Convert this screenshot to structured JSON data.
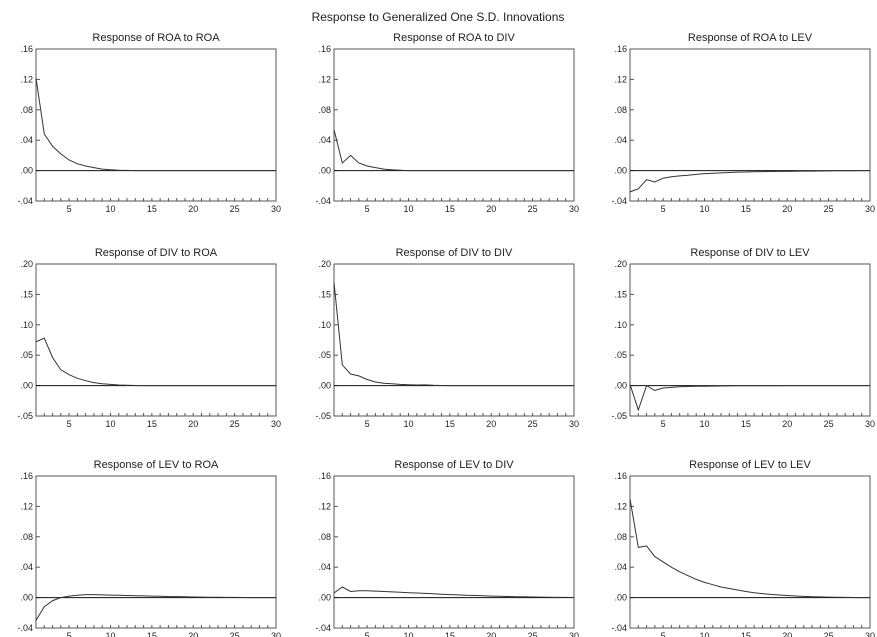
{
  "title": "Response to Generalized One S.D. Innovations",
  "chart_data": [
    {
      "type": "line",
      "title": "Response of ROA to ROA",
      "ylim": [
        -0.04,
        0.16
      ],
      "yticks": [
        -0.04,
        0.0,
        0.04,
        0.08,
        0.12,
        0.16
      ],
      "ytick_labels": [
        "-.04",
        ".00",
        ".04",
        ".08",
        ".12",
        ".16"
      ],
      "xlim": [
        1,
        30
      ],
      "xticks": [
        5,
        10,
        15,
        20,
        25,
        30
      ],
      "xtick_labels": [
        "5",
        "10",
        "15",
        "20",
        "25",
        "30"
      ],
      "zero_line": true,
      "x": [
        1,
        2,
        3,
        4,
        5,
        6,
        7,
        8,
        9,
        10,
        11,
        12,
        13,
        14,
        15,
        16,
        17,
        18,
        19,
        20,
        21,
        22,
        23,
        24,
        25,
        26,
        27,
        28,
        29,
        30
      ],
      "values": [
        0.122,
        0.048,
        0.032,
        0.022,
        0.014,
        0.009,
        0.006,
        0.004,
        0.002,
        0.001,
        0.0005,
        0.0002,
        0,
        0,
        0,
        0,
        0,
        0,
        0,
        0,
        0,
        0,
        0,
        0,
        0,
        0,
        0,
        0,
        0,
        0
      ]
    },
    {
      "type": "line",
      "title": "Response of ROA to DIV",
      "ylim": [
        -0.04,
        0.16
      ],
      "yticks": [
        -0.04,
        0.0,
        0.04,
        0.08,
        0.12,
        0.16
      ],
      "ytick_labels": [
        "-.04",
        ".00",
        ".04",
        ".08",
        ".12",
        ".16"
      ],
      "xlim": [
        1,
        30
      ],
      "xticks": [
        5,
        10,
        15,
        20,
        25,
        30
      ],
      "xtick_labels": [
        "5",
        "10",
        "15",
        "20",
        "25",
        "30"
      ],
      "zero_line": true,
      "x": [
        1,
        2,
        3,
        4,
        5,
        6,
        7,
        8,
        9,
        10,
        11,
        12,
        13,
        14,
        15,
        16,
        17,
        18,
        19,
        20,
        21,
        22,
        23,
        24,
        25,
        26,
        27,
        28,
        29,
        30
      ],
      "values": [
        0.054,
        0.01,
        0.02,
        0.01,
        0.006,
        0.004,
        0.002,
        0.001,
        0.0005,
        0,
        0,
        0,
        0,
        0,
        0,
        0,
        0,
        0,
        0,
        0,
        0,
        0,
        0,
        0,
        0,
        0,
        0,
        0,
        0,
        0
      ]
    },
    {
      "type": "line",
      "title": "Response of ROA to LEV",
      "ylim": [
        -0.04,
        0.16
      ],
      "yticks": [
        -0.04,
        0.0,
        0.04,
        0.08,
        0.12,
        0.16
      ],
      "ytick_labels": [
        "-.04",
        ".00",
        ".04",
        ".08",
        ".12",
        ".16"
      ],
      "xlim": [
        1,
        30
      ],
      "xticks": [
        5,
        10,
        15,
        20,
        25,
        30
      ],
      "xtick_labels": [
        "5",
        "10",
        "15",
        "20",
        "25",
        "30"
      ],
      "zero_line": true,
      "x": [
        1,
        2,
        3,
        4,
        5,
        6,
        7,
        8,
        9,
        10,
        11,
        12,
        13,
        14,
        15,
        16,
        17,
        18,
        19,
        20,
        21,
        22,
        23,
        24,
        25,
        26,
        27,
        28,
        29,
        30
      ],
      "values": [
        -0.028,
        -0.024,
        -0.012,
        -0.015,
        -0.01,
        -0.008,
        -0.007,
        -0.006,
        -0.005,
        -0.004,
        -0.0035,
        -0.003,
        -0.0025,
        -0.002,
        -0.0018,
        -0.0015,
        -0.0013,
        -0.0012,
        -0.001,
        -0.001,
        -0.0008,
        -0.0007,
        -0.0006,
        -0.0005,
        -0.0004,
        -0.0003,
        -0.0002,
        -0.0001,
        0,
        0
      ]
    },
    {
      "type": "line",
      "title": "Response of DIV to ROA",
      "ylim": [
        -0.05,
        0.2
      ],
      "yticks": [
        -0.05,
        0.0,
        0.05,
        0.1,
        0.15,
        0.2
      ],
      "ytick_labels": [
        "-.05",
        ".00",
        ".05",
        ".10",
        ".15",
        ".20"
      ],
      "xlim": [
        1,
        30
      ],
      "xticks": [
        5,
        10,
        15,
        20,
        25,
        30
      ],
      "xtick_labels": [
        "5",
        "10",
        "15",
        "20",
        "25",
        "30"
      ],
      "zero_line": true,
      "x": [
        1,
        2,
        3,
        4,
        5,
        6,
        7,
        8,
        9,
        10,
        11,
        12,
        13,
        14,
        15,
        16,
        17,
        18,
        19,
        20,
        21,
        22,
        23,
        24,
        25,
        26,
        27,
        28,
        29,
        30
      ],
      "values": [
        0.072,
        0.078,
        0.046,
        0.026,
        0.018,
        0.012,
        0.008,
        0.005,
        0.003,
        0.002,
        0.001,
        0.0005,
        0.0002,
        0,
        0,
        0,
        0,
        0,
        0,
        0,
        0,
        0,
        0,
        0,
        0,
        0,
        0,
        0,
        0,
        0
      ]
    },
    {
      "type": "line",
      "title": "Response of DIV to DIV",
      "ylim": [
        -0.05,
        0.2
      ],
      "yticks": [
        -0.05,
        0.0,
        0.05,
        0.1,
        0.15,
        0.2
      ],
      "ytick_labels": [
        "-.05",
        ".00",
        ".05",
        ".10",
        ".15",
        ".20"
      ],
      "xlim": [
        1,
        30
      ],
      "xticks": [
        5,
        10,
        15,
        20,
        25,
        30
      ],
      "xtick_labels": [
        "5",
        "10",
        "15",
        "20",
        "25",
        "30"
      ],
      "zero_line": true,
      "x": [
        1,
        2,
        3,
        4,
        5,
        6,
        7,
        8,
        9,
        10,
        11,
        12,
        13,
        14,
        15,
        16,
        17,
        18,
        19,
        20,
        21,
        22,
        23,
        24,
        25,
        26,
        27,
        28,
        29,
        30
      ],
      "values": [
        0.17,
        0.034,
        0.019,
        0.016,
        0.01,
        0.006,
        0.004,
        0.003,
        0.002,
        0.0015,
        0.001,
        0.0012,
        0.0005,
        0.0002,
        0,
        0,
        0,
        0,
        0,
        0,
        0,
        0,
        0,
        0,
        0,
        0,
        0,
        0,
        0,
        0
      ]
    },
    {
      "type": "line",
      "title": "Response of DIV to LEV",
      "ylim": [
        -0.05,
        0.2
      ],
      "yticks": [
        -0.05,
        0.0,
        0.05,
        0.1,
        0.15,
        0.2
      ],
      "ytick_labels": [
        "-.05",
        ".00",
        ".05",
        ".10",
        ".15",
        ".20"
      ],
      "xlim": [
        1,
        30
      ],
      "xticks": [
        5,
        10,
        15,
        20,
        25,
        30
      ],
      "xtick_labels": [
        "5",
        "10",
        "15",
        "20",
        "25",
        "30"
      ],
      "zero_line": true,
      "x": [
        1,
        2,
        3,
        4,
        5,
        6,
        7,
        8,
        9,
        10,
        11,
        12,
        13,
        14,
        15,
        16,
        17,
        18,
        19,
        20,
        21,
        22,
        23,
        24,
        25,
        26,
        27,
        28,
        29,
        30
      ],
      "values": [
        0.002,
        -0.04,
        0.0,
        -0.008,
        -0.004,
        -0.003,
        -0.002,
        -0.0015,
        -0.001,
        -0.001,
        -0.0008,
        -0.0006,
        -0.0005,
        -0.0004,
        -0.0003,
        -0.0002,
        -0.0002,
        -0.0001,
        -0.0001,
        0,
        0,
        0,
        0,
        0,
        0,
        0,
        0,
        0,
        0,
        0
      ]
    },
    {
      "type": "line",
      "title": "Response of LEV to ROA",
      "ylim": [
        -0.04,
        0.16
      ],
      "yticks": [
        -0.04,
        0.0,
        0.04,
        0.08,
        0.12,
        0.16
      ],
      "ytick_labels": [
        "-.04",
        ".00",
        ".04",
        ".08",
        ".12",
        ".16"
      ],
      "xlim": [
        1,
        30
      ],
      "xticks": [
        5,
        10,
        15,
        20,
        25,
        30
      ],
      "xtick_labels": [
        "5",
        "10",
        "15",
        "20",
        "25",
        "30"
      ],
      "zero_line": true,
      "x": [
        1,
        2,
        3,
        4,
        5,
        6,
        7,
        8,
        9,
        10,
        11,
        12,
        13,
        14,
        15,
        16,
        17,
        18,
        19,
        20,
        21,
        22,
        23,
        24,
        25,
        26,
        27,
        28,
        29,
        30
      ],
      "values": [
        -0.03,
        -0.012,
        -0.004,
        0.0,
        0.002,
        0.003,
        0.004,
        0.004,
        0.0035,
        0.0033,
        0.003,
        0.0028,
        0.0025,
        0.0022,
        0.002,
        0.0018,
        0.0015,
        0.0013,
        0.001,
        0.0008,
        0.0006,
        0.0005,
        0.0004,
        0.0003,
        0.0002,
        0.0001,
        0,
        0,
        0,
        0
      ]
    },
    {
      "type": "line",
      "title": "Response of LEV to DIV",
      "ylim": [
        -0.04,
        0.16
      ],
      "yticks": [
        -0.04,
        0.0,
        0.04,
        0.08,
        0.12,
        0.16
      ],
      "ytick_labels": [
        "-.04",
        ".00",
        ".04",
        ".08",
        ".12",
        ".16"
      ],
      "xlim": [
        1,
        30
      ],
      "xticks": [
        5,
        10,
        15,
        20,
        25,
        30
      ],
      "xtick_labels": [
        "5",
        "10",
        "15",
        "20",
        "25",
        "30"
      ],
      "zero_line": true,
      "x": [
        1,
        2,
        3,
        4,
        5,
        6,
        7,
        8,
        9,
        10,
        11,
        12,
        13,
        14,
        15,
        16,
        17,
        18,
        19,
        20,
        21,
        22,
        23,
        24,
        25,
        26,
        27,
        28,
        29,
        30
      ],
      "values": [
        0.006,
        0.014,
        0.008,
        0.009,
        0.009,
        0.0085,
        0.008,
        0.0075,
        0.007,
        0.0065,
        0.006,
        0.0055,
        0.005,
        0.0045,
        0.004,
        0.0035,
        0.003,
        0.0027,
        0.0024,
        0.002,
        0.0017,
        0.0014,
        0.0012,
        0.001,
        0.0008,
        0.0006,
        0.0004,
        0.0003,
        0.0002,
        0.0001
      ]
    },
    {
      "type": "line",
      "title": "Response of LEV to LEV",
      "ylim": [
        -0.04,
        0.16
      ],
      "yticks": [
        -0.04,
        0.0,
        0.04,
        0.08,
        0.12,
        0.16
      ],
      "ytick_labels": [
        "-.04",
        ".00",
        ".04",
        ".08",
        ".12",
        ".16"
      ],
      "xlim": [
        1,
        30
      ],
      "xticks": [
        5,
        10,
        15,
        20,
        25,
        30
      ],
      "xtick_labels": [
        "5",
        "10",
        "15",
        "20",
        "25",
        "30"
      ],
      "zero_line": true,
      "x": [
        1,
        2,
        3,
        4,
        5,
        6,
        7,
        8,
        9,
        10,
        11,
        12,
        13,
        14,
        15,
        16,
        17,
        18,
        19,
        20,
        21,
        22,
        23,
        24,
        25,
        26,
        27,
        28,
        29,
        30
      ],
      "values": [
        0.13,
        0.066,
        0.068,
        0.054,
        0.047,
        0.04,
        0.034,
        0.029,
        0.024,
        0.02,
        0.017,
        0.014,
        0.012,
        0.01,
        0.008,
        0.0065,
        0.0052,
        0.0042,
        0.0034,
        0.0027,
        0.0021,
        0.0016,
        0.0012,
        0.0009,
        0.0006,
        0.0004,
        0.0002,
        0.0001,
        0,
        0
      ]
    }
  ]
}
